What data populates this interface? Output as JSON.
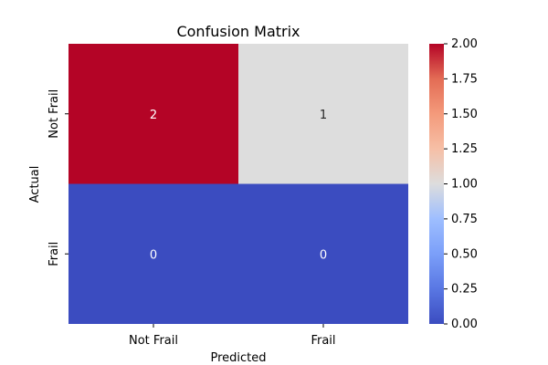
{
  "chart_data": {
    "type": "heatmap",
    "title": "Confusion Matrix",
    "xlabel": "Predicted",
    "ylabel": "Actual",
    "x_categories": [
      "Not Frail",
      "Frail"
    ],
    "y_categories": [
      "Not Frail",
      "Frail"
    ],
    "values": [
      [
        2,
        1
      ],
      [
        0,
        0
      ]
    ],
    "annotations": [
      [
        "2",
        "1"
      ],
      [
        "0",
        "0"
      ]
    ],
    "colormap": "coolwarm",
    "colorbar": {
      "range": [
        0,
        2
      ],
      "ticks": [
        "0.00",
        "0.25",
        "0.50",
        "0.75",
        "1.00",
        "1.25",
        "1.50",
        "1.75",
        "2.00"
      ]
    },
    "colors": {
      "high": "#b40426",
      "mid": "#dddddd",
      "low": "#3b4cc0",
      "annotation": "#ffffff",
      "annotation_mid": "#262626"
    }
  }
}
